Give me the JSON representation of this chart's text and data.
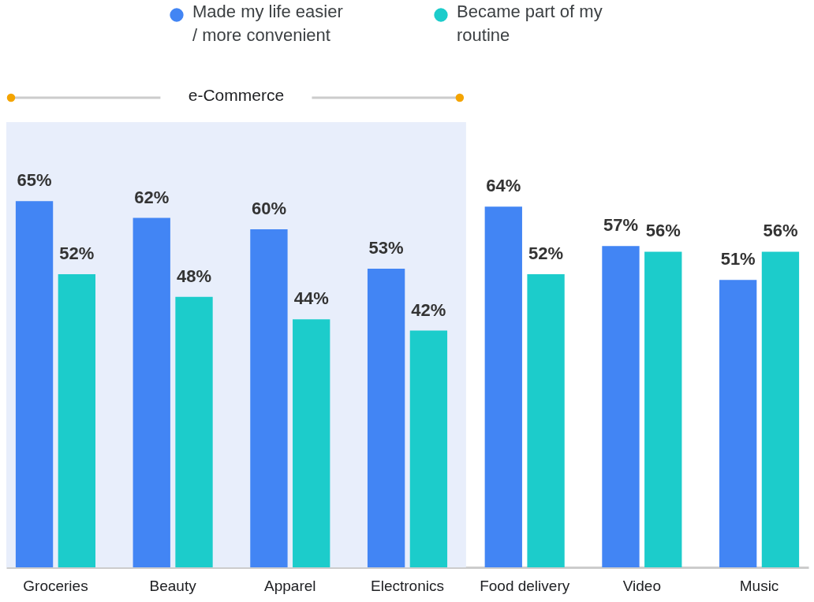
{
  "chart_data": {
    "type": "bar",
    "categories": [
      "Groceries",
      "Beauty",
      "Apparel",
      "Electronics",
      "Food delivery",
      "Video",
      "Music"
    ],
    "series": [
      {
        "name": "Made my life easier / more convenient",
        "color": "#4285f4",
        "values": [
          65,
          62,
          60,
          53,
          64,
          57,
          51
        ],
        "value_labels": [
          "65%",
          "62%",
          "60%",
          "53%",
          "64%",
          "57%",
          "51%"
        ]
      },
      {
        "name": "Became part of my routine",
        "color": "#1ccccb",
        "values": [
          52,
          48,
          44,
          42,
          52,
          56,
          56
        ],
        "value_labels": [
          "52%",
          "48%",
          "44%",
          "42%",
          "52%",
          "56%",
          "56%"
        ]
      }
    ],
    "ylim": [
      0,
      79
    ],
    "tick_labels": "x",
    "legend": "top",
    "bands": [
      {
        "axis": "x",
        "from": "Groceries",
        "to": "Electronics",
        "label": "e-Commerce",
        "color": "#e8eefb"
      }
    ]
  }
}
